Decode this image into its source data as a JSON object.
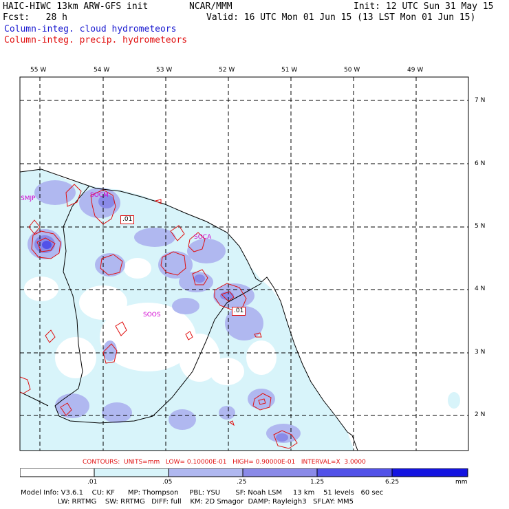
{
  "header": {
    "title_left": "HAIC-HIWC 13km ARW-GFS init",
    "title_center": "NCAR/MMM",
    "init": "Init: 12 UTC Sun 31 May 15",
    "fcst": "Fcst:   28 h",
    "valid": "Valid: 16 UTC Mon 01 Jun 15 (13 LST Mon 01 Jun 15)",
    "field_cloud": "Column-integ. cloud hydrometeors",
    "field_precip": "Column-integ. precip. hydrometeors"
  },
  "map": {
    "lon_labels": [
      "55 W",
      "54 W",
      "53 W",
      "52 W",
      "51 W",
      "50 W",
      "49 W"
    ],
    "lat_labels": [
      "7 N",
      "6 N",
      "5 N",
      "4 N",
      "3 N",
      "2 N"
    ],
    "stations": [
      "SMJP",
      "SOCM",
      "SOCA",
      "SOOS"
    ],
    "contour_labels": [
      ".01",
      ".01"
    ]
  },
  "legend": {
    "contours": "CONTOURS:  UNITS=mm   LOW= 0.10000E-01   HIGH= 0.90000E-01   INTERVAL=X  3.0000",
    "ticks": [
      ".01",
      ".05",
      ".25",
      "1.25",
      "6.25"
    ],
    "units": "mm",
    "colors": [
      "#ffffff",
      "#d8f4fa",
      "#b0b8f0",
      "#8a8ae8",
      "#5252e8",
      "#1414e0"
    ]
  },
  "footer": {
    "line1": "Model Info: V3.6.1    CU: KF      MP: Thompson     PBL: YSU       SF: Noah LSM     13 km    51 levels   60 sec",
    "line2": "                 LW: RRTMG    SW: RRTMG   DIFF: full    KM: 2D Smagor  DAMP: Rayleigh3   SFLAY: MM5"
  }
}
